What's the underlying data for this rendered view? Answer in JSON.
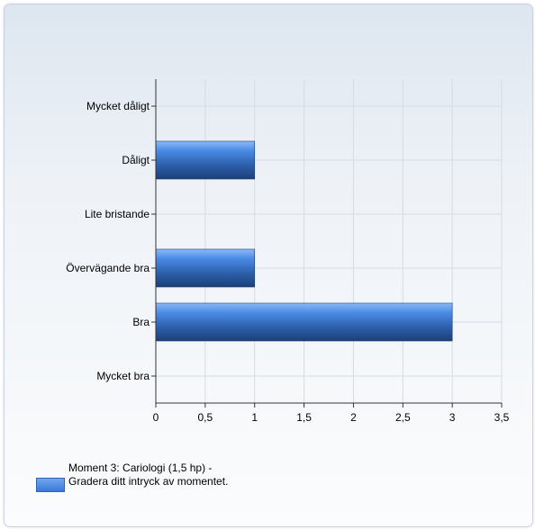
{
  "chart_data": {
    "type": "bar",
    "orientation": "horizontal",
    "categories": [
      "Mycket dåligt",
      "Dåligt",
      "Lite bristande",
      "Övervägande bra",
      "Bra",
      "Mycket bra"
    ],
    "series": [
      {
        "name": "Moment 3: Cariologi (1,5 hp) - Gradera ditt intryck av momentet.",
        "values": [
          0,
          1,
          0,
          1,
          3,
          0
        ]
      }
    ],
    "xlim": [
      0,
      3.5
    ],
    "xticks": [
      "0",
      "0,5",
      "1",
      "1,5",
      "2",
      "2,5",
      "3",
      "3,5"
    ],
    "grid": true,
    "legend_position": "bottom-left",
    "bar_color": "#4a8be6"
  },
  "legend": {
    "label": "Moment 3: Cariologi (1,5 hp) - Gradera ditt intryck av momentet."
  }
}
